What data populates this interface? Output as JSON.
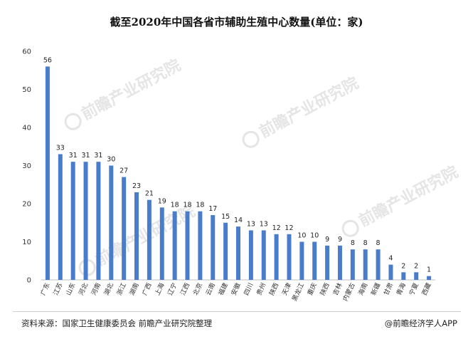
{
  "chart_data": {
    "type": "bar",
    "title": "截至2020年中国各省市辅助生殖中心数量(单位：家)",
    "xlabel": "",
    "ylabel": "",
    "ylim": [
      0,
      60
    ],
    "yticks": [
      0,
      10,
      20,
      30,
      40,
      50,
      60
    ],
    "grid": false,
    "bar_color": "#4a7ccc",
    "categories": [
      "广东",
      "江苏",
      "山东",
      "河北",
      "河南",
      "湖北",
      "浙江",
      "湖南",
      "广西",
      "上海",
      "辽宁",
      "江西",
      "北京",
      "云南",
      "福建",
      "安徽",
      "四川",
      "贵州",
      "陕西",
      "天津",
      "黑龙江",
      "重庆",
      "陕西",
      "吉林",
      "内蒙古",
      "海南",
      "新疆",
      "甘肃",
      "青海",
      "宁夏",
      "西藏"
    ],
    "values": [
      56,
      33,
      31,
      31,
      31,
      30,
      27,
      23,
      21,
      19,
      18,
      18,
      18,
      17,
      15,
      14,
      13,
      13,
      12,
      12,
      10,
      10,
      9,
      9,
      8,
      8,
      8,
      4,
      2,
      2,
      1
    ]
  },
  "footer": {
    "source": "资料来源：国家卫生健康委员会 前瞻产业研究院整理",
    "brand": "@前瞻经济学人APP"
  },
  "watermark": {
    "text": "前瞻产业研究院",
    "icon": "qianzhan-logo-icon"
  }
}
